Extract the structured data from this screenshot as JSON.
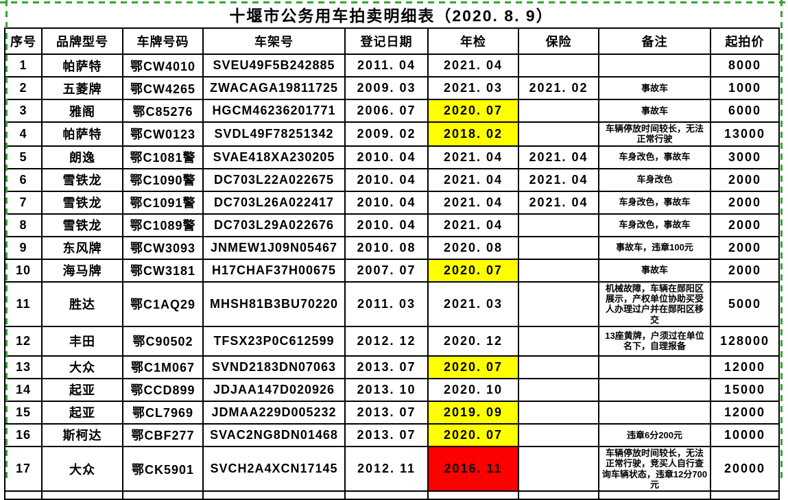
{
  "title": "十堰市公务用车拍卖明细表（2020. 8. 9）",
  "colors": {
    "highlight_yellow": "#FFFF00",
    "highlight_red": "#FF0000",
    "page_break_green": "#33A532",
    "grid_border": "#000000"
  },
  "columns": [
    "序号",
    "品牌型号",
    "车牌号码",
    "车架号",
    "登记日期",
    "年检",
    "保险",
    "备注",
    "起拍价"
  ],
  "rows": [
    {
      "no": "1",
      "brand": "帕萨特",
      "plate": "鄂CW4010",
      "vin": "SVEU49F5B242885",
      "reg_date": "2011. 04",
      "inspection": "2021. 04",
      "inspection_highlight": "",
      "insurance": "",
      "remark": "",
      "price": "8000"
    },
    {
      "no": "2",
      "brand": "五菱牌",
      "plate": "鄂CW4265",
      "vin": "ZWACAGA19811725",
      "reg_date": "2009. 03",
      "inspection": "2021. 03",
      "inspection_highlight": "",
      "insurance": "2021. 02",
      "remark": "事故车",
      "price": "1000"
    },
    {
      "no": "3",
      "brand": "雅阁",
      "plate": "鄂C85276",
      "vin": "HGCM46236201771",
      "reg_date": "2006. 07",
      "inspection": "2020. 07",
      "inspection_highlight": "yellow",
      "insurance": "",
      "remark": "事故车",
      "price": "6000"
    },
    {
      "no": "4",
      "brand": "帕萨特",
      "plate": "鄂CW0123",
      "vin": "SVDL49F78251342",
      "reg_date": "2009. 02",
      "inspection": "2018. 02",
      "inspection_highlight": "yellow",
      "insurance": "",
      "remark": "车辆停放时间较长，无法正常行驶",
      "price": "13000"
    },
    {
      "no": "5",
      "brand": "朗逸",
      "plate": "鄂C1081警",
      "vin": "SVAE418XA230205",
      "reg_date": "2010. 04",
      "inspection": "2021. 04",
      "inspection_highlight": "",
      "insurance": "2021. 04",
      "remark": "车身改色，事故车",
      "price": "3000"
    },
    {
      "no": "6",
      "brand": "雪铁龙",
      "plate": "鄂C1090警",
      "vin": "DC703L22A022675",
      "reg_date": "2010. 04",
      "inspection": "2021. 04",
      "inspection_highlight": "",
      "insurance": "2021. 04",
      "remark": "车身改色",
      "price": "2000"
    },
    {
      "no": "7",
      "brand": "雪铁龙",
      "plate": "鄂C1091警",
      "vin": "DC703L26A022417",
      "reg_date": "2010. 04",
      "inspection": "2021. 04",
      "inspection_highlight": "",
      "insurance": "2021. 04",
      "remark": "车身改色，事故车",
      "price": "2000"
    },
    {
      "no": "8",
      "brand": "雪铁龙",
      "plate": "鄂C1089警",
      "vin": "DC703L29A022676",
      "reg_date": "2010. 04",
      "inspection": "2021. 04",
      "inspection_highlight": "",
      "insurance": "",
      "remark": "车身改色，事故车",
      "price": "2000"
    },
    {
      "no": "9",
      "brand": "东风牌",
      "plate": "鄂CW3093",
      "vin": "JNMEW1J09N05467",
      "reg_date": "2010. 08",
      "inspection": "2020. 08",
      "inspection_highlight": "",
      "insurance": "",
      "remark": "事故车，违章100元",
      "price": "2000"
    },
    {
      "no": "10",
      "brand": "海马牌",
      "plate": "鄂CW3181",
      "vin": "H17CHAF37H00675",
      "reg_date": "2007. 07",
      "inspection": "2020. 07",
      "inspection_highlight": "yellow",
      "insurance": "",
      "remark": "事故车",
      "price": "2000"
    },
    {
      "no": "11",
      "brand": "胜达",
      "plate": "鄂C1AQ29",
      "vin": "MHSH81B3BU70220",
      "reg_date": "2011. 03",
      "inspection": "2021. 03",
      "inspection_highlight": "",
      "insurance": "",
      "remark": "机械故障，车辆在郧阳区展示，产权单位协助买受人办理过户并在郧阳区移交",
      "price": "5000"
    },
    {
      "no": "12",
      "brand": "丰田",
      "plate": "鄂C90502",
      "vin": "TFSX23P0C612599",
      "reg_date": "2012. 12",
      "inspection": "2020. 12",
      "inspection_highlight": "",
      "insurance": "",
      "remark": "13座黄牌，户须过在单位名下，自理报备",
      "price": "128000"
    },
    {
      "no": "13",
      "brand": "大众",
      "plate": "鄂C1M067",
      "vin": "SVND2183DN07063",
      "reg_date": "2013. 07",
      "inspection": "2020. 07",
      "inspection_highlight": "yellow",
      "insurance": "",
      "remark": "",
      "price": "12000"
    },
    {
      "no": "14",
      "brand": "起亚",
      "plate": "鄂CCD899",
      "vin": "JDJAA147D020926",
      "reg_date": "2013. 10",
      "inspection": "2020. 10",
      "inspection_highlight": "",
      "insurance": "",
      "remark": "",
      "price": "15000"
    },
    {
      "no": "15",
      "brand": "起亚",
      "plate": "鄂CL7969",
      "vin": "JDMAA229D005232",
      "reg_date": "2013. 07",
      "inspection": "2019. 09",
      "inspection_highlight": "yellow",
      "insurance": "",
      "remark": "",
      "price": "12000"
    },
    {
      "no": "16",
      "brand": "斯柯达",
      "plate": "鄂CBF277",
      "vin": "SVAC2NG8DN01468",
      "reg_date": "2013. 07",
      "inspection": "2020. 07",
      "inspection_highlight": "yellow",
      "insurance": "",
      "remark": "违章6分200元",
      "price": "10000"
    },
    {
      "no": "17",
      "brand": "大众",
      "plate": "鄂CK5901",
      "vin": "SVCH2A4XCN17145",
      "reg_date": "2012. 11",
      "inspection": "2016. 11",
      "inspection_highlight": "red",
      "insurance": "",
      "remark": "车辆停放时间较长，无法正常行驶，竞买人自行查询车辆状态，违章12分700元",
      "price": "20000"
    }
  ]
}
